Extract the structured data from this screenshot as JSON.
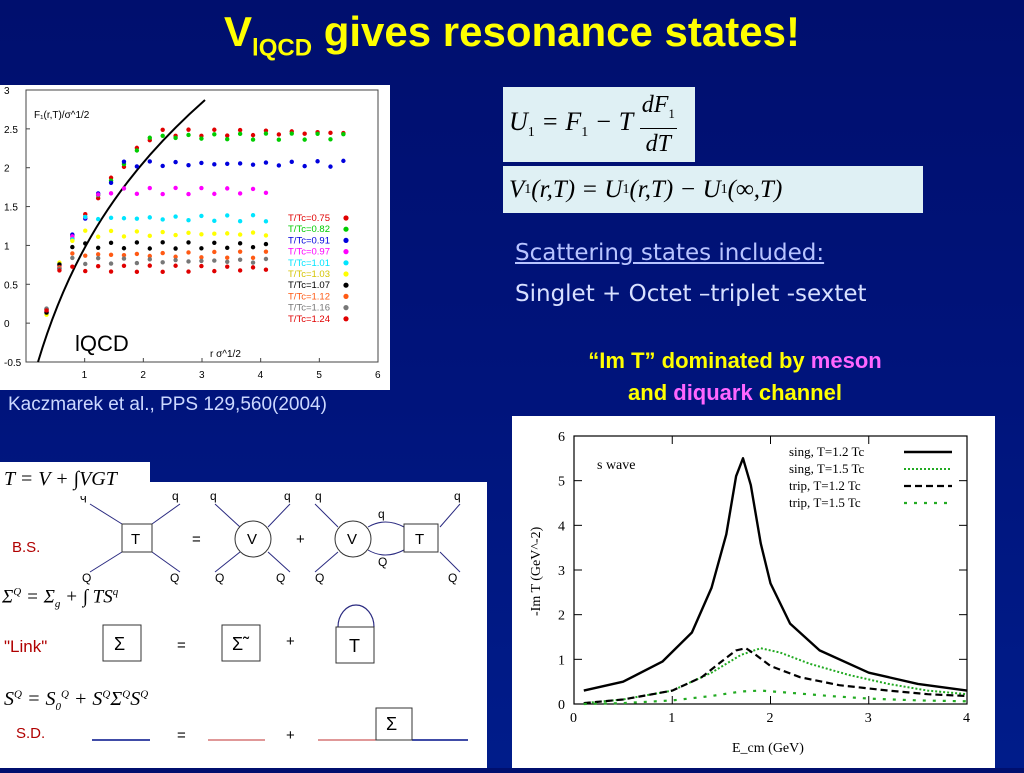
{
  "title": {
    "main": "V",
    "sub": "lQCD",
    "rest": " gives resonance states!"
  },
  "equations": {
    "u1": "U₁ = F₁ − T dF₁/dT",
    "v1": "V₁(r,T) = U₁(r,T) − U₁(∞,T)",
    "tmatrix": "T = V + ∫VGT",
    "sigma": "Σ^Q = Σ_g + ∫TS^q",
    "sd_eq": "S^Q = S_0^Q + S^QΣ^QS^Q"
  },
  "citation": "Kaczmarek et al., PPS 129,560(2004)",
  "scattering": {
    "line1": "Scattering states included:",
    "line2": "Singlet + Octet –triplet -sextet"
  },
  "note": {
    "part1": "“Im T”",
    "part2": " dominated by ",
    "part3": "meson",
    "part4": "and ",
    "part5": "diquark",
    "part6": " channel"
  },
  "lattice_plot": {
    "ylabel": "F₁(r,T)/σ^1/2",
    "xlabel": "r σ^1/2",
    "inset_label": "lQCD",
    "yticks": [
      "3",
      "2.5",
      "2",
      "1.5",
      "1",
      "0.5",
      "0",
      "-0.5"
    ],
    "xticks": [
      "1",
      "2",
      "3",
      "4",
      "5",
      "6"
    ],
    "legend": [
      "T/Tc=0.75",
      "T/Tc=0.82",
      "T/Tc=0.91",
      "T/Tc=0.97",
      "T/Tc=1.01",
      "T/Tc=1.03",
      "T/Tc=1.07",
      "T/Tc=1.12",
      "T/Tc=1.16",
      "T/Tc=1.24"
    ]
  },
  "diagrams": {
    "bs": "B.S.",
    "link": "\"Link\"",
    "sd": "S.D.",
    "T": "T",
    "V": "V",
    "Sigma": "Σ",
    "SigmaTilde": "Σ̃",
    "eq": "=",
    "plus": "+",
    "q": "q",
    "Q": "Q"
  },
  "chart_data": {
    "type": "line",
    "title": "",
    "annotation": "s wave",
    "xlabel": "E_cm (GeV)",
    "ylabel": "-Im T (GeV^-2)",
    "xlim": [
      0,
      4
    ],
    "ylim": [
      0,
      6
    ],
    "xticks": [
      "0",
      "1",
      "2",
      "3",
      "4"
    ],
    "yticks": [
      "0",
      "1",
      "2",
      "3",
      "4",
      "5",
      "6"
    ],
    "legend_position": "top-right",
    "series": [
      {
        "name": "sing, T=1.2 Tc",
        "color": "#000000",
        "style": "solid",
        "x": [
          0.1,
          0.5,
          0.9,
          1.2,
          1.4,
          1.55,
          1.65,
          1.72,
          1.8,
          1.9,
          2.0,
          2.2,
          2.5,
          3.0,
          3.5,
          4.0
        ],
        "y": [
          0.3,
          0.5,
          0.95,
          1.6,
          2.6,
          3.8,
          5.1,
          5.5,
          4.9,
          3.6,
          2.7,
          1.8,
          1.2,
          0.7,
          0.45,
          0.3
        ]
      },
      {
        "name": "sing, T=1.5 Tc",
        "color": "#22aa22",
        "style": "dotted",
        "x": [
          0.1,
          0.5,
          1.0,
          1.4,
          1.7,
          1.9,
          2.1,
          2.4,
          2.8,
          3.2,
          3.6,
          4.0
        ],
        "y": [
          0.02,
          0.1,
          0.3,
          0.7,
          1.1,
          1.25,
          1.15,
          0.9,
          0.65,
          0.45,
          0.3,
          0.22
        ]
      },
      {
        "name": "trip, T=1.2 Tc",
        "color": "#000000",
        "style": "dashed",
        "x": [
          0.1,
          0.5,
          1.0,
          1.3,
          1.5,
          1.65,
          1.75,
          1.85,
          2.0,
          2.3,
          2.7,
          3.2,
          3.6,
          4.0
        ],
        "y": [
          0.02,
          0.1,
          0.3,
          0.6,
          0.95,
          1.2,
          1.25,
          1.1,
          0.85,
          0.6,
          0.42,
          0.3,
          0.22,
          0.18
        ]
      },
      {
        "name": "trip, T=1.5 Tc",
        "color": "#22aa22",
        "style": "sparse-dashed",
        "x": [
          0.1,
          0.5,
          1.0,
          1.4,
          1.7,
          1.9,
          2.2,
          2.6,
          3.0,
          3.5,
          4.0
        ],
        "y": [
          0.0,
          0.02,
          0.08,
          0.18,
          0.28,
          0.3,
          0.25,
          0.18,
          0.12,
          0.08,
          0.06
        ]
      }
    ]
  }
}
